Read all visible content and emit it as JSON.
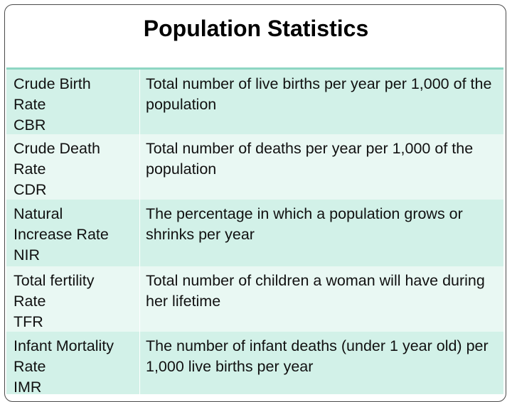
{
  "title": "Population Statistics",
  "rows": [
    {
      "term": [
        "Crude Birth",
        "Rate",
        "CBR"
      ],
      "definition": "Total number of live births per year per 1,000 of the population"
    },
    {
      "term": [
        "Crude Death",
        "Rate",
        "CDR"
      ],
      "definition": "Total number of deaths per year per 1,000 of the population"
    },
    {
      "term": [
        "Natural",
        "Increase Rate",
        "NIR"
      ],
      "definition": "The percentage in which a population grows or shrinks per year"
    },
    {
      "term": [
        "Total fertility",
        "Rate",
        "TFR"
      ],
      "definition": "Total number of children a woman will have during her lifetime"
    },
    {
      "term": [
        "Infant Mortality",
        "Rate",
        "IMR"
      ],
      "definition": "The number of infant deaths (under 1 year old) per 1,000 live births per year"
    }
  ]
}
